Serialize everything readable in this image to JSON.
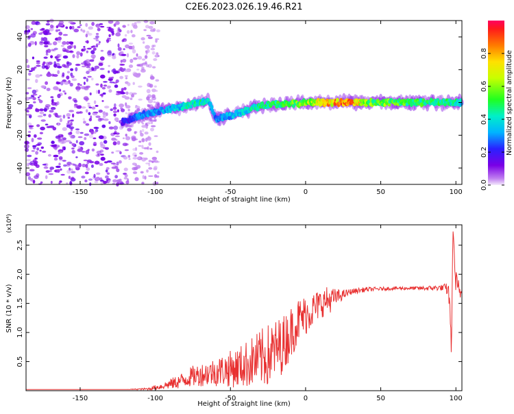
{
  "title": "C2E6.2023.026.19.46.R21",
  "chart_data": [
    {
      "type": "heatmap",
      "xlabel": "Height of straight line (km)",
      "ylabel": "Frequency (Hz)",
      "xlim": [
        -186,
        104
      ],
      "ylim": [
        -50,
        50
      ],
      "xticks": [
        -150,
        -100,
        -50,
        0,
        50,
        100
      ],
      "yticks": [
        -40,
        -20,
        0,
        20,
        40
      ],
      "colorbar": {
        "label": "Normalized spectral amplitude",
        "range": [
          0,
          1
        ],
        "ticks": [
          "0.0",
          "0.2",
          "0.4",
          "0.6",
          "0.8"
        ],
        "colormap": "rainbow (purple to red)"
      },
      "trace": {
        "x": [
          -122,
          -110,
          -100,
          -90,
          -80,
          -70,
          -65,
          -60,
          -50,
          -40,
          -30,
          -20,
          -10,
          0,
          10,
          20,
          30,
          40,
          60,
          80,
          100,
          104
        ],
        "y": [
          -12,
          -8,
          -6,
          -4,
          -2,
          0,
          2,
          -10,
          -8,
          -5,
          -2,
          -1,
          -1,
          0,
          0,
          0,
          0,
          0,
          0,
          0,
          0,
          0
        ],
        "amplitude": [
          0.2,
          0.3,
          0.3,
          0.35,
          0.4,
          0.45,
          0.4,
          0.3,
          0.35,
          0.4,
          0.45,
          0.5,
          0.55,
          0.6,
          0.7,
          0.85,
          0.9,
          0.6,
          0.55,
          0.5,
          0.45,
          0.4
        ]
      },
      "noise_region_x": [
        -186,
        -120
      ]
    },
    {
      "type": "line",
      "xlabel": "Height of straight line (km)",
      "ylabel": "SNR (10 * v/v)",
      "y_multiplier": "(x10⁴)",
      "xlim": [
        -186,
        104
      ],
      "ylim": [
        0,
        2.85
      ],
      "xticks": [
        -150,
        -100,
        -50,
        0,
        50,
        100
      ],
      "yticks": [
        "0.5",
        "1.0",
        "1.5",
        "2.0",
        "2.5"
      ],
      "color": "#e83030",
      "series": [
        {
          "x": [
            -186,
            -150,
            -120,
            -105,
            -95,
            -85,
            -75,
            -65,
            -55,
            -45,
            -35,
            -25,
            -15,
            -10,
            -5,
            0,
            5,
            10,
            15,
            20,
            25,
            30,
            40,
            50,
            60,
            70,
            80,
            90,
            94,
            96,
            97,
            98,
            100,
            102,
            104
          ],
          "y": [
            0.02,
            0.02,
            0.02,
            0.03,
            0.08,
            0.15,
            0.25,
            0.3,
            0.35,
            0.4,
            0.5,
            0.6,
            0.8,
            1.0,
            1.2,
            1.3,
            1.4,
            1.5,
            1.55,
            1.6,
            1.65,
            1.7,
            1.74,
            1.75,
            1.76,
            1.76,
            1.76,
            1.77,
            1.75,
            1.6,
            0.55,
            2.8,
            1.8,
            1.7,
            1.68
          ],
          "noise_amplitude": [
            0,
            0,
            0,
            0.02,
            0.06,
            0.12,
            0.18,
            0.22,
            0.28,
            0.35,
            0.45,
            0.55,
            0.5,
            0.45,
            0.4,
            0.35,
            0.3,
            0.25,
            0.25,
            0.15,
            0.08,
            0.05,
            0.04,
            0.03,
            0.03,
            0.03,
            0.04,
            0.05,
            0.1,
            0.3,
            0,
            0,
            0.3,
            0.2,
            0.05
          ]
        }
      ]
    }
  ]
}
